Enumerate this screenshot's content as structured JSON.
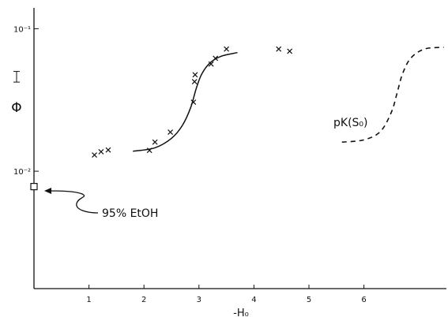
{
  "chart_data": {
    "type": "scatter",
    "xlabel": "-H₀",
    "ylabel": "Φ",
    "x_ticks": [
      "1",
      "2",
      "3",
      "4",
      "5",
      "6"
    ],
    "y_ticks": [
      "10⁻¹",
      "10⁻²"
    ],
    "x_range": [
      0,
      7.5
    ],
    "y_range_log": [
      0.0015,
      0.14
    ],
    "y_scale": "log",
    "grid": false,
    "series": [
      {
        "kind": "points",
        "marker": "x",
        "points": [
          [
            1.1,
            0.013
          ],
          [
            1.22,
            0.0137
          ],
          [
            1.35,
            0.0141
          ],
          [
            2.1,
            0.014
          ],
          [
            2.2,
            0.016
          ],
          [
            2.48,
            0.0188
          ],
          [
            2.9,
            0.0305
          ],
          [
            2.92,
            0.0425
          ],
          [
            2.93,
            0.0475
          ],
          [
            3.22,
            0.0565
          ],
          [
            3.3,
            0.062
          ],
          [
            3.5,
            0.072
          ],
          [
            4.45,
            0.072
          ],
          [
            4.65,
            0.0695
          ]
        ]
      },
      {
        "kind": "fit-curve",
        "style": "solid",
        "points": [
          [
            1.8,
            0.0138
          ],
          [
            2.2,
            0.0146
          ],
          [
            2.5,
            0.017
          ],
          [
            2.7,
            0.021
          ],
          [
            2.85,
            0.028
          ],
          [
            2.95,
            0.038
          ],
          [
            3.05,
            0.048
          ],
          [
            3.2,
            0.0575
          ],
          [
            3.4,
            0.064
          ],
          [
            3.7,
            0.068
          ]
        ]
      },
      {
        "kind": "reference-curve",
        "style": "dashed",
        "points": [
          [
            5.6,
            0.016
          ],
          [
            6.0,
            0.0166
          ],
          [
            6.3,
            0.019
          ],
          [
            6.5,
            0.026
          ],
          [
            6.6,
            0.035
          ],
          [
            6.7,
            0.048
          ],
          [
            6.85,
            0.062
          ],
          [
            7.1,
            0.072
          ],
          [
            7.45,
            0.074
          ]
        ]
      },
      {
        "kind": "reference-point",
        "marker": "open-square",
        "points": [
          [
            0,
            0.0078
          ]
        ]
      }
    ],
    "annotations": {
      "ethanol_label": "95% EtOH",
      "pk_label": "pK(S₀)"
    },
    "error_bar": {
      "y": 0.046,
      "half_span": 0.004
    }
  }
}
